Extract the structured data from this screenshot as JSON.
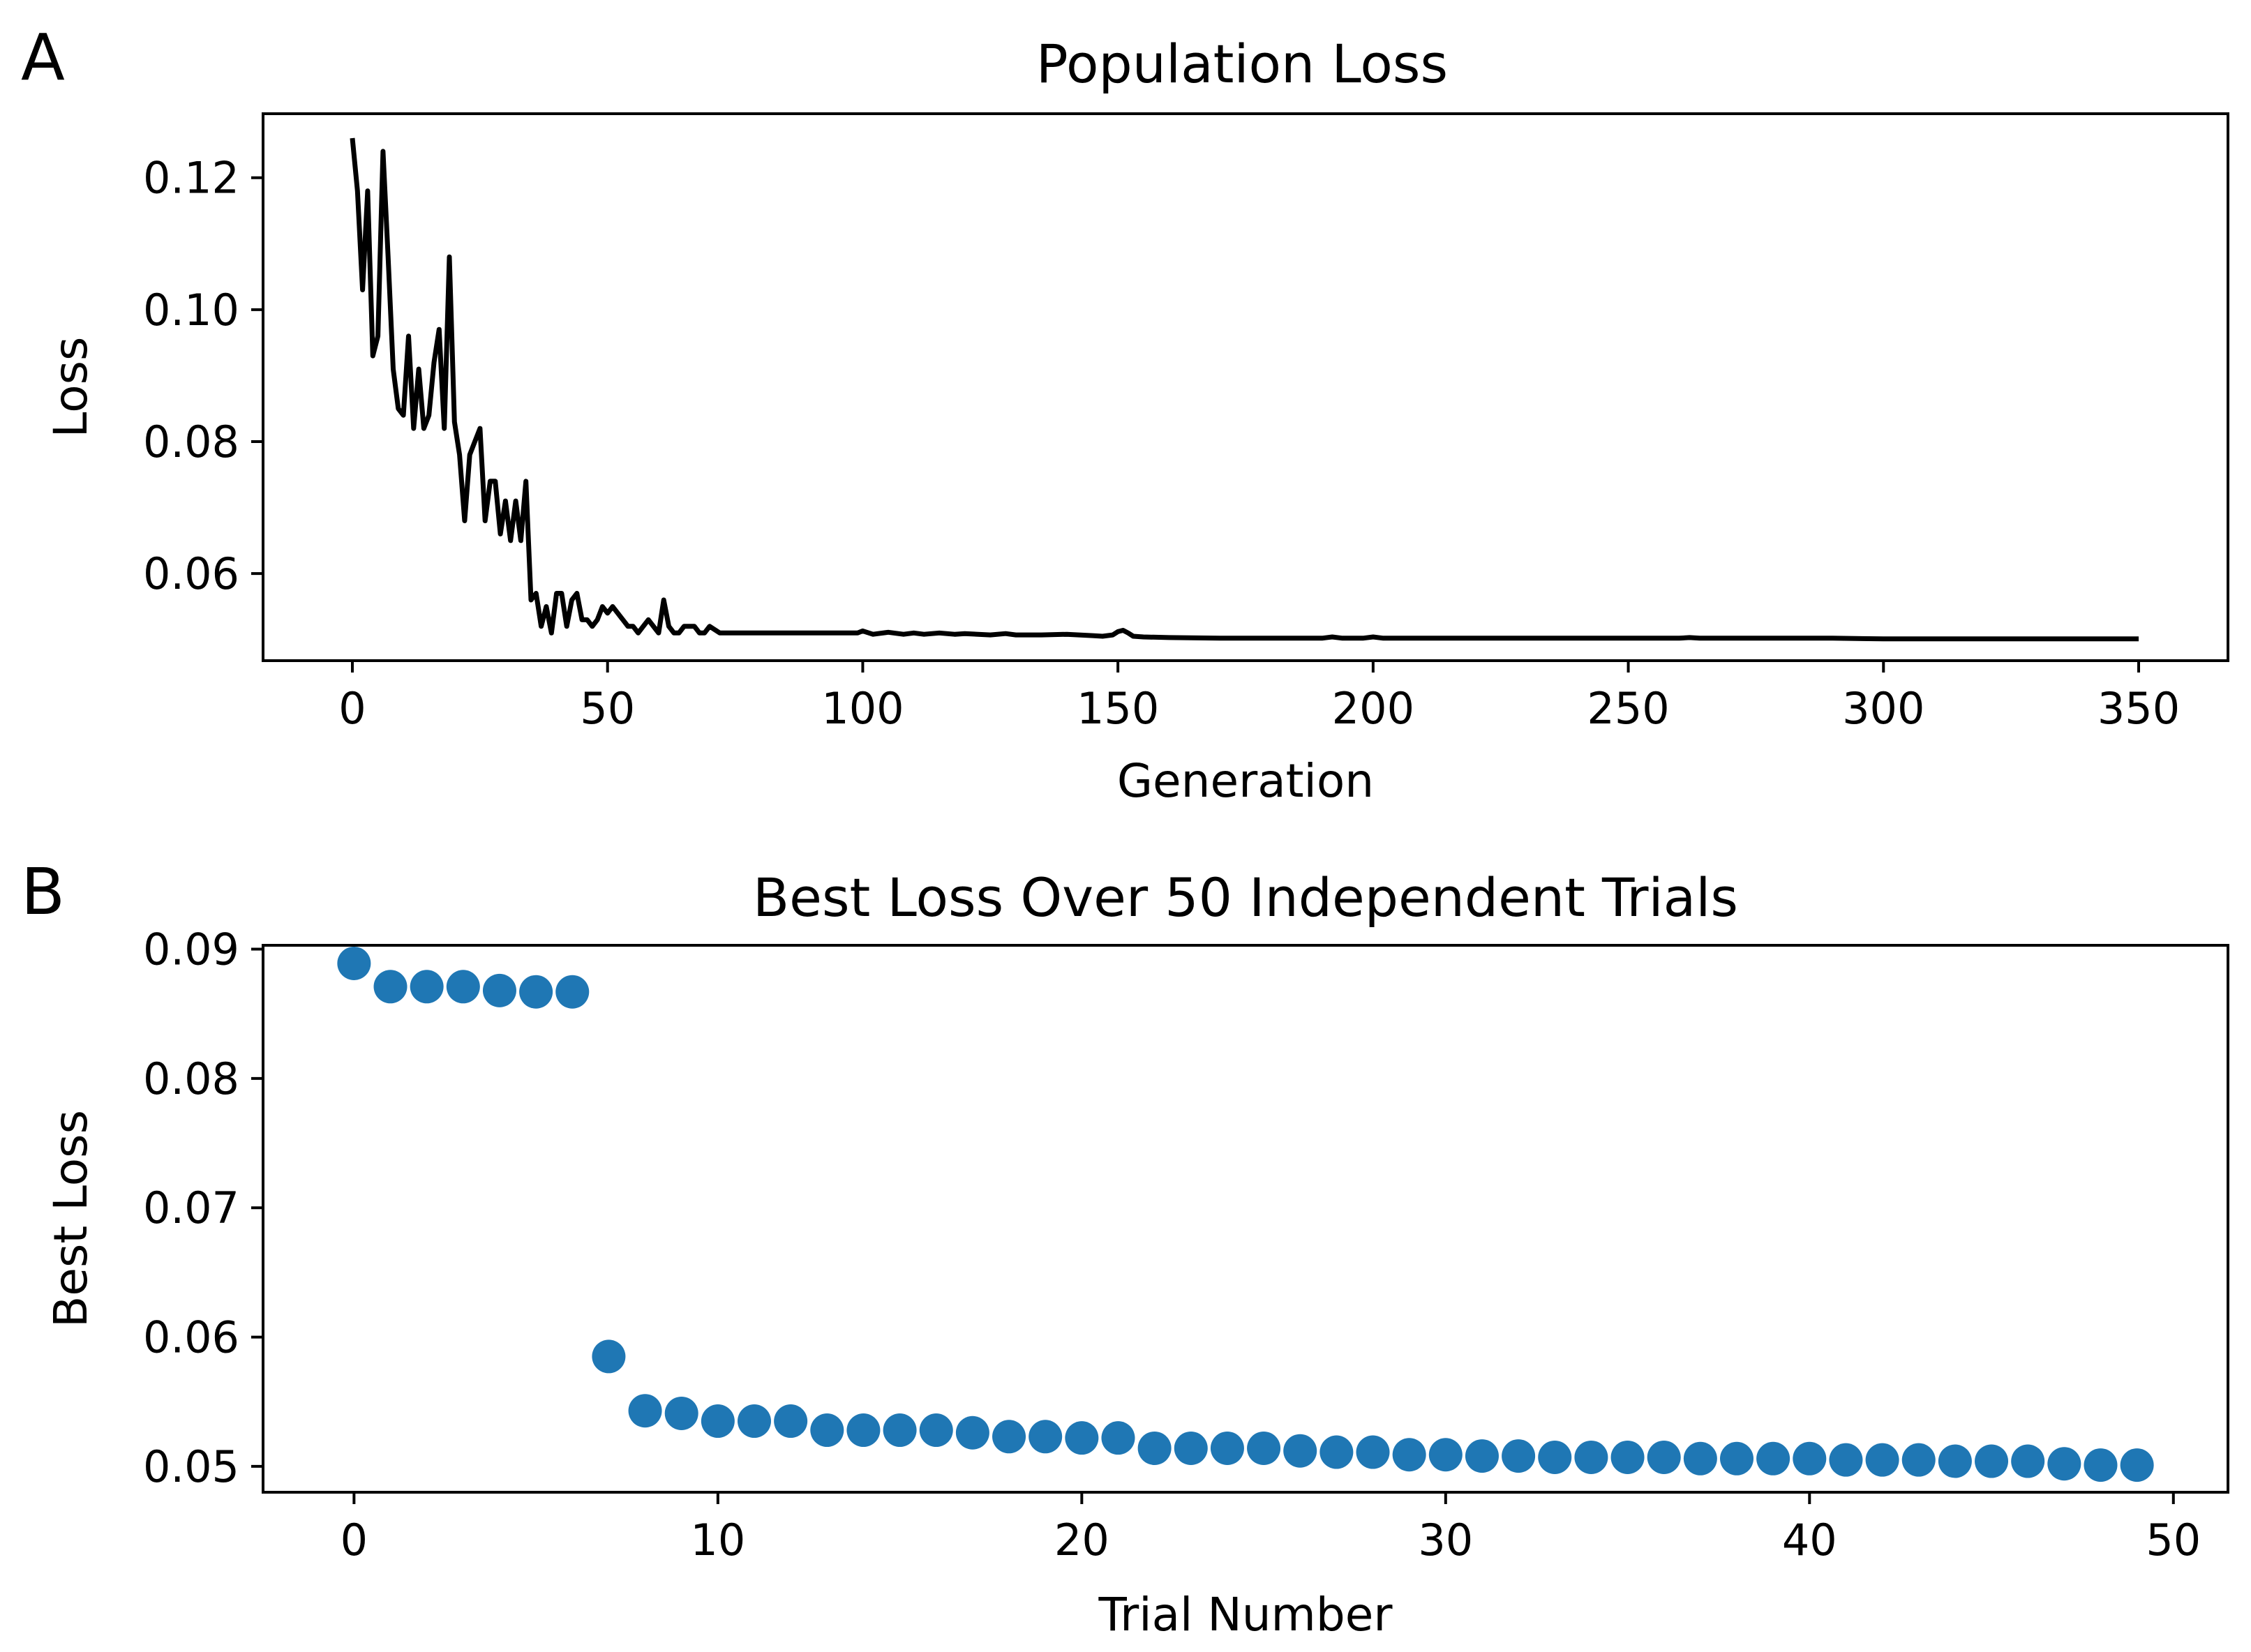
{
  "chart_data": [
    {
      "panel": "A",
      "type": "line",
      "title": "Population Loss",
      "xlabel": "Generation",
      "ylabel": "Loss",
      "xlim": [
        -17.5,
        367.5
      ],
      "ylim": [
        0.0468,
        0.1297
      ],
      "xticks": [
        0,
        50,
        100,
        150,
        200,
        250,
        300,
        350
      ],
      "xtick_labels": [
        "0",
        "50",
        "100",
        "150",
        "200",
        "250",
        "300",
        "350"
      ],
      "yticks": [
        0.06,
        0.08,
        0.1,
        0.12
      ],
      "ytick_labels": [
        "0.06",
        "0.08",
        "0.10",
        "0.12"
      ],
      "grid": false,
      "line_color": "#000000",
      "series": [
        {
          "name": "Population Loss",
          "x": [
            0,
            1,
            2,
            3,
            4,
            5,
            6,
            7,
            8,
            9,
            10,
            11,
            12,
            13,
            14,
            15,
            16,
            17,
            18,
            19,
            20,
            21,
            22,
            23,
            24,
            25,
            26,
            27,
            28,
            29,
            30,
            31,
            32,
            33,
            34,
            35,
            36,
            37,
            38,
            39,
            40,
            41,
            42,
            43,
            44,
            45,
            46,
            47,
            48,
            49,
            50,
            51,
            52,
            53,
            54,
            55,
            56,
            57,
            58,
            59,
            60,
            61,
            62,
            63,
            64,
            65,
            66,
            67,
            68,
            69,
            70,
            72,
            74,
            76,
            78,
            80,
            85,
            90,
            95,
            99,
            100,
            102,
            105,
            108,
            110,
            112,
            115,
            118,
            120,
            125,
            128,
            130,
            135,
            140,
            145,
            147,
            149,
            150,
            151,
            152,
            153,
            155,
            160,
            170,
            180,
            190,
            192,
            194,
            196,
            198,
            200,
            202,
            205,
            210,
            220,
            230,
            240,
            250,
            260,
            262,
            264,
            270,
            280,
            290,
            300,
            310,
            320,
            330,
            340,
            350
          ],
          "y": [
            0.126,
            0.118,
            0.103,
            0.118,
            0.093,
            0.096,
            0.124,
            0.108,
            0.091,
            0.085,
            0.084,
            0.096,
            0.082,
            0.091,
            0.082,
            0.084,
            0.092,
            0.097,
            0.082,
            0.108,
            0.083,
            0.078,
            0.068,
            0.078,
            0.08,
            0.082,
            0.068,
            0.074,
            0.074,
            0.066,
            0.071,
            0.065,
            0.071,
            0.065,
            0.074,
            0.056,
            0.057,
            0.052,
            0.055,
            0.051,
            0.057,
            0.057,
            0.052,
            0.056,
            0.057,
            0.053,
            0.053,
            0.052,
            0.053,
            0.055,
            0.054,
            0.055,
            0.054,
            0.053,
            0.052,
            0.052,
            0.051,
            0.052,
            0.053,
            0.052,
            0.051,
            0.056,
            0.052,
            0.051,
            0.051,
            0.052,
            0.052,
            0.052,
            0.051,
            0.051,
            0.052,
            0.051,
            0.051,
            0.051,
            0.051,
            0.051,
            0.051,
            0.051,
            0.051,
            0.051,
            0.0513,
            0.0508,
            0.0511,
            0.0508,
            0.051,
            0.0508,
            0.051,
            0.0508,
            0.0509,
            0.0507,
            0.0509,
            0.0507,
            0.0507,
            0.0508,
            0.0506,
            0.0505,
            0.0507,
            0.0512,
            0.0514,
            0.051,
            0.0505,
            0.0504,
            0.0503,
            0.0502,
            0.0502,
            0.0502,
            0.0504,
            0.0502,
            0.0502,
            0.0502,
            0.0504,
            0.0502,
            0.0502,
            0.0502,
            0.0502,
            0.0502,
            0.0502,
            0.0502,
            0.0502,
            0.0503,
            0.0502,
            0.0502,
            0.0502,
            0.0502,
            0.0501,
            0.0501,
            0.0501,
            0.0501,
            0.0501,
            0.0501
          ]
        }
      ]
    },
    {
      "panel": "B",
      "type": "scatter",
      "title": "Best Loss Over 50 Independent Trials",
      "xlabel": "Trial Number",
      "ylabel": "Best Loss",
      "xlim": [
        -2.5,
        51.5
      ],
      "ylim": [
        0.048,
        0.0903
      ],
      "xticks": [
        0,
        10,
        20,
        30,
        40,
        50
      ],
      "xtick_labels": [
        "0",
        "10",
        "20",
        "30",
        "40",
        "50"
      ],
      "yticks": [
        0.05,
        0.06,
        0.07,
        0.08,
        0.09
      ],
      "ytick_labels": [
        "0.05",
        "0.06",
        "0.07",
        "0.08",
        "0.09"
      ],
      "grid": false,
      "marker_color": "#1f77b4",
      "series": [
        {
          "name": "Best Loss",
          "x": [
            0,
            1,
            2,
            3,
            4,
            5,
            6,
            7,
            8,
            9,
            10,
            11,
            12,
            13,
            14,
            15,
            16,
            17,
            18,
            19,
            20,
            21,
            22,
            23,
            24,
            25,
            26,
            27,
            28,
            29,
            30,
            31,
            32,
            33,
            34,
            35,
            36,
            37,
            38,
            39,
            40,
            41,
            42,
            43,
            44,
            45,
            46,
            47,
            48,
            49
          ],
          "y": [
            0.0889,
            0.0871,
            0.0871,
            0.0871,
            0.0868,
            0.0867,
            0.0867,
            0.0585,
            0.0543,
            0.0541,
            0.0535,
            0.0535,
            0.0535,
            0.0528,
            0.0528,
            0.0528,
            0.0528,
            0.0526,
            0.0523,
            0.0523,
            0.0522,
            0.0522,
            0.0514,
            0.0514,
            0.0514,
            0.0514,
            0.0512,
            0.0511,
            0.0511,
            0.0509,
            0.0509,
            0.0508,
            0.0508,
            0.0507,
            0.0507,
            0.0507,
            0.0507,
            0.0506,
            0.0506,
            0.0506,
            0.0506,
            0.0505,
            0.0505,
            0.0505,
            0.0504,
            0.0504,
            0.0504,
            0.0502,
            0.0501,
            0.0501
          ]
        }
      ]
    }
  ]
}
